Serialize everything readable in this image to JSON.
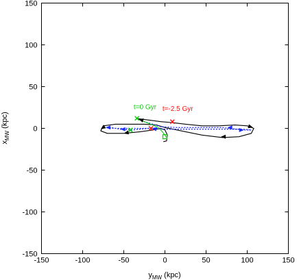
{
  "chart_data": {
    "type": "line",
    "xlabel": {
      "main": "y",
      "sub": "MW",
      "unit": " (kpc)"
    },
    "ylabel": {
      "main": "x",
      "sub": "MW",
      "unit": " (kpc)"
    },
    "xlim": [
      -150,
      150
    ],
    "ylim": [
      -150,
      150
    ],
    "xticks": [
      -150,
      -100,
      -50,
      0,
      50,
      100,
      150
    ],
    "yticks": [
      -150,
      -100,
      -50,
      0,
      50,
      100,
      150
    ],
    "grid": false,
    "legend": "none",
    "series": [
      {
        "style": "solid",
        "color": "#000000",
        "points": [
          [
            -35,
            12
          ],
          [
            -20,
            10
          ],
          [
            -5,
            8
          ],
          [
            8,
            7
          ],
          [
            25,
            5
          ],
          [
            45,
            3
          ],
          [
            65,
            3
          ],
          [
            85,
            4
          ],
          [
            100,
            3
          ],
          [
            108,
            0
          ],
          [
            105,
            -6
          ],
          [
            90,
            -10
          ],
          [
            70,
            -11
          ],
          [
            45,
            -8
          ],
          [
            25,
            -4
          ],
          [
            10,
            -1
          ],
          [
            0,
            1
          ],
          [
            -10,
            4
          ],
          [
            -25,
            5
          ],
          [
            -45,
            5
          ],
          [
            -60,
            5
          ],
          [
            -75,
            3
          ],
          [
            -78,
            -3
          ],
          [
            -70,
            -6
          ],
          [
            -50,
            -6
          ],
          [
            -30,
            -4
          ],
          [
            -15,
            -2
          ],
          [
            -5,
            0
          ],
          [
            0,
            -2
          ],
          [
            3,
            -8
          ],
          [
            2,
            -15
          ],
          [
            -2,
            -16
          ]
        ]
      },
      {
        "style": "dotted",
        "color": "#1a2bff",
        "points": [
          [
            -35,
            12
          ],
          [
            -25,
            8
          ],
          [
            -5,
            2
          ],
          [
            15,
            1
          ],
          [
            40,
            1
          ],
          [
            70,
            1
          ],
          [
            95,
            -2
          ],
          [
            105,
            -2
          ],
          [
            95,
            -1
          ],
          [
            70,
            -1
          ],
          [
            40,
            -1
          ],
          [
            15,
            -1
          ],
          [
            0,
            -1
          ],
          [
            -20,
            0
          ],
          [
            -40,
            -2
          ],
          [
            -55,
            -1
          ],
          [
            -65,
            1
          ],
          [
            -75,
            1
          ],
          [
            -60,
            0
          ],
          [
            -40,
            0
          ],
          [
            -20,
            0
          ],
          [
            -5,
            0
          ]
        ]
      },
      {
        "style": "solid",
        "color": "#11cc11",
        "points": [
          [
            -35,
            12
          ],
          [
            -25,
            8
          ],
          [
            -15,
            4
          ],
          [
            -8,
            1
          ],
          [
            -4,
            -3
          ],
          [
            0,
            -8
          ],
          [
            2,
            -11
          ]
        ]
      }
    ],
    "arrows": [
      {
        "color": "#000000",
        "points": [
          [
            -72,
            3
          ],
          [
            -78,
            -1
          ]
        ]
      },
      {
        "color": "#000000",
        "points": [
          [
            100,
            3
          ],
          [
            107,
            1
          ]
        ]
      },
      {
        "color": "#000000",
        "points": [
          [
            -25,
            9
          ],
          [
            -32,
            11
          ]
        ]
      },
      {
        "color": "#000000",
        "points": [
          [
            -45,
            -5
          ],
          [
            -50,
            -6
          ]
        ]
      },
      {
        "color": "#000000",
        "points": [
          [
            75,
            -10
          ],
          [
            68,
            -10
          ]
        ]
      },
      {
        "color": "#1a2bff",
        "points": [
          [
            -48,
            -1
          ],
          [
            -54,
            -1
          ]
        ]
      },
      {
        "color": "#1a2bff",
        "points": [
          [
            -10,
            -1
          ],
          [
            -16,
            0
          ]
        ]
      },
      {
        "color": "#1a2bff",
        "points": [
          [
            82,
            1
          ],
          [
            76,
            1
          ]
        ]
      },
      {
        "color": "#1a2bff",
        "points": [
          [
            90,
            -2
          ],
          [
            96,
            -2
          ]
        ]
      },
      {
        "color": "#1a2bff",
        "points": [
          [
            -66,
            1
          ],
          [
            -72,
            1
          ]
        ]
      }
    ],
    "markers": [
      {
        "shape": "x",
        "color": "#11cc11",
        "at": [
          -34,
          12
        ]
      },
      {
        "shape": "x",
        "color": "#11cc11",
        "at": [
          -42,
          -2
        ]
      },
      {
        "shape": "x",
        "color": "#ff1111",
        "at": [
          9,
          8
        ]
      },
      {
        "shape": "x",
        "color": "#ff1111",
        "at": [
          -17,
          0
        ]
      },
      {
        "shape": "square",
        "color": "#11cc11",
        "at": [
          0,
          -10
        ]
      }
    ],
    "annotations": [
      {
        "text": "t=0 Gyr",
        "color": "#11cc11",
        "at": [
          -38,
          23
        ]
      },
      {
        "text": "t=-2.5 Gyr",
        "color": "#ff1111",
        "at": [
          -3,
          21
        ]
      }
    ]
  }
}
